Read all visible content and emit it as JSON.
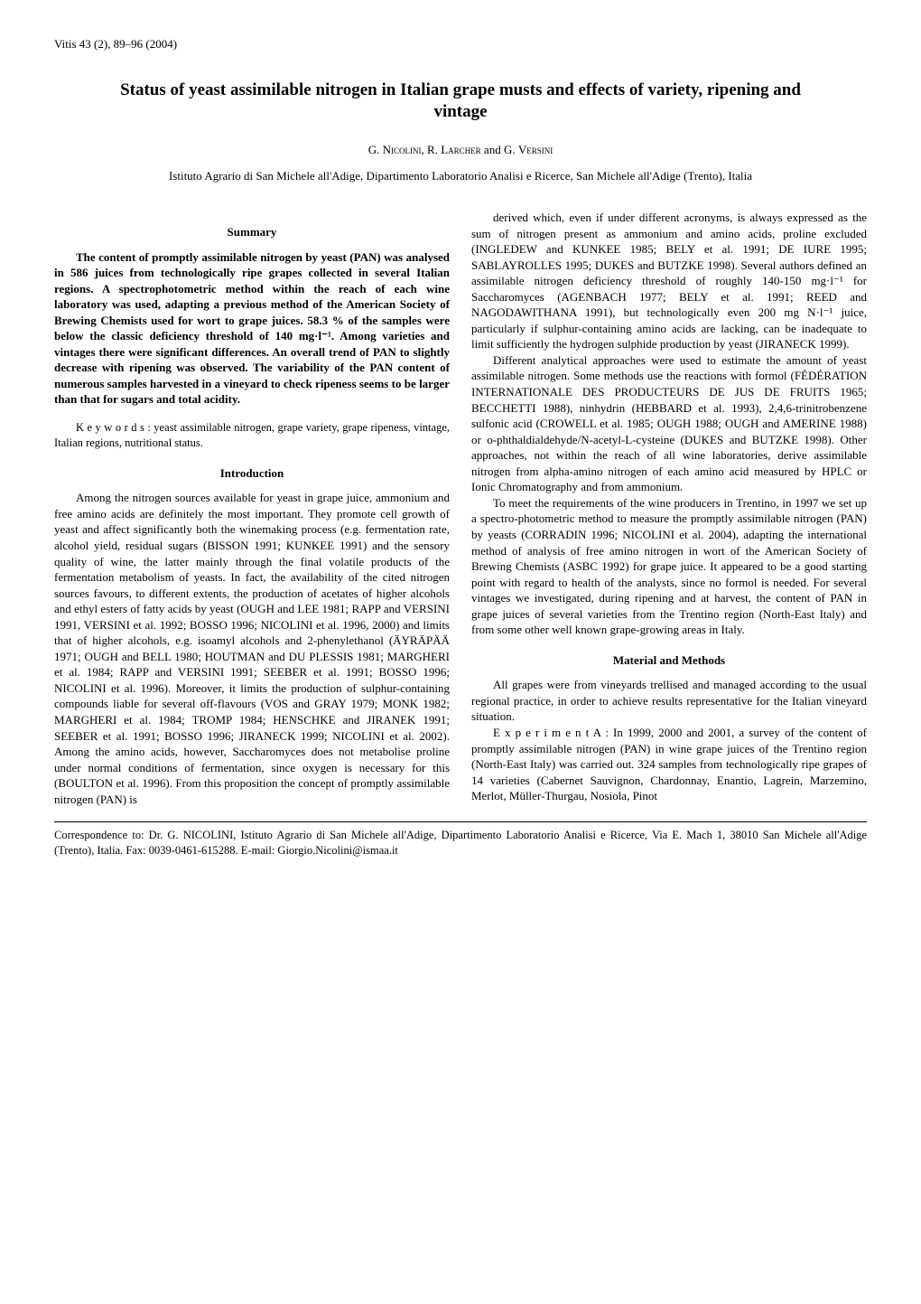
{
  "journal_header": "Vitis 43 (2), 89–96 (2004)",
  "title": "Status of yeast assimilable nitrogen in Italian grape musts and effects of variety, ripening and vintage",
  "author_prefix_1": "G. ",
  "author_name_1": "Nicolini",
  "author_sep_1": ", R. ",
  "author_name_2": "Larcher",
  "author_sep_2": " and G. ",
  "author_name_3": "Versini",
  "affiliation": "Istituto Agrario di San Michele all'Adige, Dipartimento Laboratorio Analisi e Ricerce, San Michele all'Adige (Trento), Italia",
  "sections": {
    "summary_heading": "Summary",
    "abstract": "The content of promptly assimilable nitrogen by yeast (PAN) was analysed in 586 juices from technologically ripe grapes collected in several Italian regions. A spectrophotometric method within the reach of each wine laboratory was used, adapting a previous method of the American Society of Brewing Chemists used for wort to grape juices. 58.3 % of the samples were below the classic deficiency threshold of 140 mg·l⁻¹. Among varieties and vintages there were significant differences. An overall trend of PAN to slightly decrease with ripening was observed. The variability of the PAN content of numerous samples harvested in a vineyard to check ripeness seems to be larger than that for sugars and total acidity.",
    "keywords_label": "K e y   w o r d s :",
    "keywords": " yeast assimilable nitrogen, grape variety, grape ripeness, vintage, Italian regions, nutritional status.",
    "introduction_heading": "Introduction",
    "intro_p1": "Among the nitrogen sources available for yeast in grape juice, ammonium and free amino acids are definitely the most important. They promote cell growth of yeast and affect significantly both the winemaking process (e.g. fermentation rate, alcohol yield, residual sugars (BISSON 1991; KUNKEE 1991) and the sensory quality of wine, the latter mainly through the final volatile products of the fermentation metabolism of yeasts. In fact, the availability of the cited nitrogen sources favours, to different extents, the production of acetates of higher alcohols and ethyl esters of fatty acids by yeast (OUGH and LEE 1981; RAPP and VERSINI 1991, VERSINI et al. 1992; BOSSO 1996; NICOLINI et al. 1996, 2000) and limits that of higher alcohols, e.g. isoamyl alcohols and 2-phenylethanol (ÄYRÄPÄÄ 1971; OUGH and BELL 1980; HOUTMAN and DU PLESSIS 1981; MARGHERI et al. 1984; RAPP and VERSINI 1991; SEEBER et al. 1991; BOSSO 1996; NICOLINI et al. 1996). Moreover, it limits the production of sulphur-containing compounds liable for several off-flavours (VOS and GRAY 1979; MONK 1982; MARGHERI et al. 1984; TROMP 1984; HENSCHKE and JIRANEK 1991; SEEBER et al. 1991; BOSSO 1996; JIRANECK 1999; NICOLINI et al. 2002). Among the amino acids, however, Saccharomyces does not metabolise proline under normal conditions of fermentation, since oxygen is necessary for this (BOULTON et al. 1996). From this proposition the concept of promptly assimilable nitrogen (PAN) is",
    "col2_p1": "derived which, even if under different acronyms, is always expressed as the sum of nitrogen present as ammonium and amino acids, proline excluded (INGLEDEW and KUNKEE 1985; BELY et al. 1991; DE IURE 1995; SABLAYROLLES 1995; DUKES and BUTZKE 1998). Several authors defined an assimilable nitrogen deficiency threshold of roughly 140-150 mg·l⁻¹ for Saccharomyces (AGENBACH 1977; BELY et al. 1991; REED and NAGODAWITHANA 1991), but technologically even 200 mg N·l⁻¹ juice, particularly if sulphur-containing amino acids are lacking, can be inadequate to limit sufficiently the hydrogen sulphide production by yeast (JIRANECK 1999).",
    "col2_p2": "Different analytical approaches were used to estimate the amount of yeast assimilable nitrogen. Some methods use the reactions with formol (FÉDÉRATION INTERNATIONALE DES PRODUCTEURS DE JUS DE FRUITS 1965; BECCHETTI 1988), ninhydrin (HEBBARD et al. 1993), 2,4,6-trinitrobenzene sulfonic acid (CROWELL et al. 1985; OUGH 1988; OUGH and AMERINE 1988) or o-phthaldialdehyde/N-acetyl-L-cysteine (DUKES and BUTZKE 1998). Other approaches, not within the reach of all wine laboratories, derive assimilable nitrogen from alpha-amino nitrogen of each amino acid measured by HPLC or Ionic Chromatography and from ammonium.",
    "col2_p3": "To meet the requirements of the wine producers in Trentino, in 1997 we set up a spectro-photometric method to measure the promptly assimilable nitrogen (PAN) by yeasts (CORRADIN 1996; NICOLINI et al. 2004), adapting the international method of analysis of free amino nitrogen in wort of the American Society of Brewing Chemists (ASBC 1992) for grape juice. It appeared to be a good starting point with regard to health of the analysts, since no formol is needed. For several vintages we investigated, during ripening and at harvest, the content of PAN in grape juices of several varieties from the Trentino region (North-East Italy) and from some other well known grape-growing areas in Italy.",
    "methods_heading": "Material and Methods",
    "methods_p1": "All grapes were from vineyards trellised and managed according to the usual regional practice, in order to achieve results representative for the Italian vineyard situation.",
    "methods_p2": "E x p e r i m e n t  A :  In 1999, 2000 and 2001, a survey of the content of promptly assimilable nitrogen (PAN) in wine grape juices of the Trentino region (North-East Italy) was carried out. 324 samples from technologically ripe grapes of 14 varieties (Cabernet Sauvignon, Chardonnay, Enantio, Lagrein, Marzemino, Merlot, Müller-Thurgau, Nosiola, Pinot"
  },
  "footnote": "Correspondence to: Dr. G. NICOLINI, Istituto Agrario di San Michele all'Adige, Dipartimento Laboratorio Analisi e Ricerce, Via E. Mach 1, 38010 San Michele all'Adige (Trento), Italia. Fax: 0039-0461-615288. E-mail: Giorgio.Nicolini@ismaa.it"
}
